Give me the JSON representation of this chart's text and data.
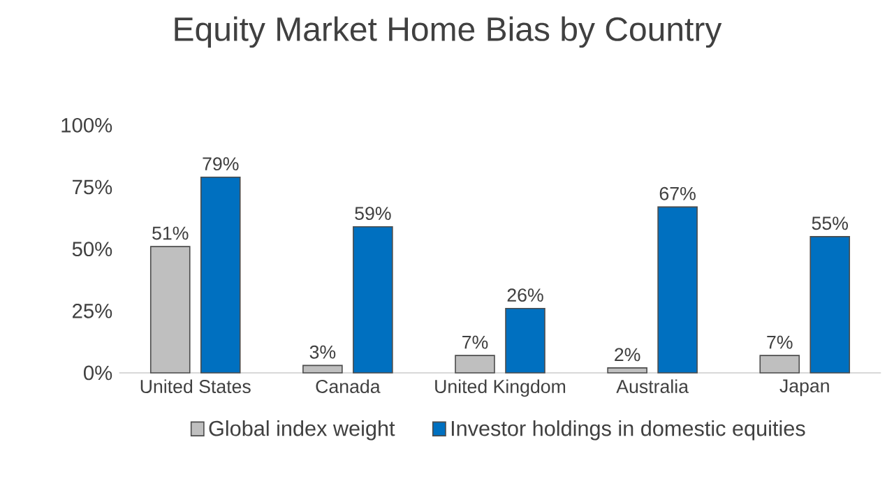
{
  "chart_data": {
    "type": "bar",
    "title": "Equity Market Home Bias by Country",
    "categories": [
      "United States",
      "Canada",
      "United Kingdom",
      "Australia",
      "Japan"
    ],
    "series": [
      {
        "name": "Global index weight",
        "color": "#bfbfbf",
        "values": [
          51,
          3,
          7,
          2,
          7
        ],
        "value_labels": [
          "51%",
          "3%",
          "7%",
          "2%",
          "7%"
        ]
      },
      {
        "name": "Investor holdings in domestic equities",
        "color": "#0070c0",
        "values": [
          79,
          59,
          26,
          67,
          55
        ],
        "value_labels": [
          "79%",
          "59%",
          "26%",
          "67%",
          "55%"
        ]
      }
    ],
    "ylim": [
      0,
      100
    ],
    "yticks": [
      {
        "value": 0,
        "label": "0%"
      },
      {
        "value": 25,
        "label": "25%"
      },
      {
        "value": 50,
        "label": "50%"
      },
      {
        "value": 75,
        "label": "75%"
      },
      {
        "value": 100,
        "label": "100%"
      }
    ],
    "legend": "bottom"
  }
}
